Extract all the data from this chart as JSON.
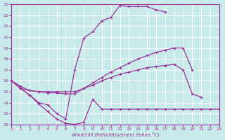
{
  "xlabel": "Windchill (Refroidissement éolien,°C)",
  "xlim": [
    0,
    23
  ],
  "ylim": [
    12,
    23
  ],
  "xticks": [
    0,
    1,
    2,
    3,
    4,
    5,
    6,
    7,
    8,
    9,
    10,
    11,
    12,
    13,
    14,
    15,
    16,
    17,
    18,
    19,
    20,
    21,
    22,
    23
  ],
  "yticks": [
    12,
    13,
    14,
    15,
    16,
    17,
    18,
    19,
    20,
    21,
    22,
    23
  ],
  "bg_color": "#c8eaea",
  "line_color": "#993399",
  "grid_color": "#ffffff",
  "line1_x": [
    0,
    1,
    2,
    3,
    4,
    5,
    6,
    7,
    8,
    9,
    10,
    11,
    12,
    13,
    14,
    15,
    16,
    17
  ],
  "line1_y": [
    16,
    15.3,
    14.7,
    14.0,
    13.8,
    13.0,
    12.5,
    17.0,
    19.9,
    20.5,
    21.5,
    21.8,
    22.9,
    22.8,
    22.8,
    22.8,
    22.5,
    22.3
  ],
  "line2_x": [
    0,
    1,
    2,
    3,
    4,
    5,
    6,
    7,
    8,
    9,
    10,
    11,
    12,
    13,
    14,
    15,
    16,
    17,
    18,
    19,
    20
  ],
  "line2_y": [
    16,
    15.5,
    15.1,
    15.0,
    14.9,
    14.9,
    14.8,
    14.8,
    15.3,
    15.8,
    16.3,
    16.8,
    17.2,
    17.6,
    18.0,
    18.3,
    18.6,
    18.8,
    19.0,
    19.0,
    17.0
  ],
  "line3_x": [
    0,
    1,
    2,
    3,
    4,
    5,
    6,
    7,
    8,
    9,
    10,
    11,
    12,
    13,
    14,
    15,
    16,
    17,
    18,
    19,
    20,
    21,
    22,
    23
  ],
  "line3_y": [
    16,
    15.3,
    15.1,
    15.0,
    15.0,
    15.0,
    15.0,
    15.0,
    15.3,
    15.6,
    16.0,
    16.3,
    16.6,
    16.8,
    17.0,
    17.2,
    17.3,
    17.4,
    17.5,
    17.0,
    14.8,
    14.5,
    null,
    null
  ],
  "line4_x": [
    0,
    1,
    2,
    3,
    4,
    5,
    6,
    7,
    8,
    9,
    10,
    11,
    12,
    13,
    14,
    15,
    16,
    17,
    18,
    19,
    20,
    21,
    22,
    23
  ],
  "line4_y": [
    16,
    15.3,
    14.7,
    13.9,
    13.2,
    12.5,
    12.1,
    12.0,
    12.2,
    14.3,
    13.4,
    13.4,
    13.4,
    13.4,
    13.4,
    13.4,
    13.4,
    13.4,
    13.4,
    13.4,
    13.4,
    13.4,
    13.4,
    13.4
  ]
}
